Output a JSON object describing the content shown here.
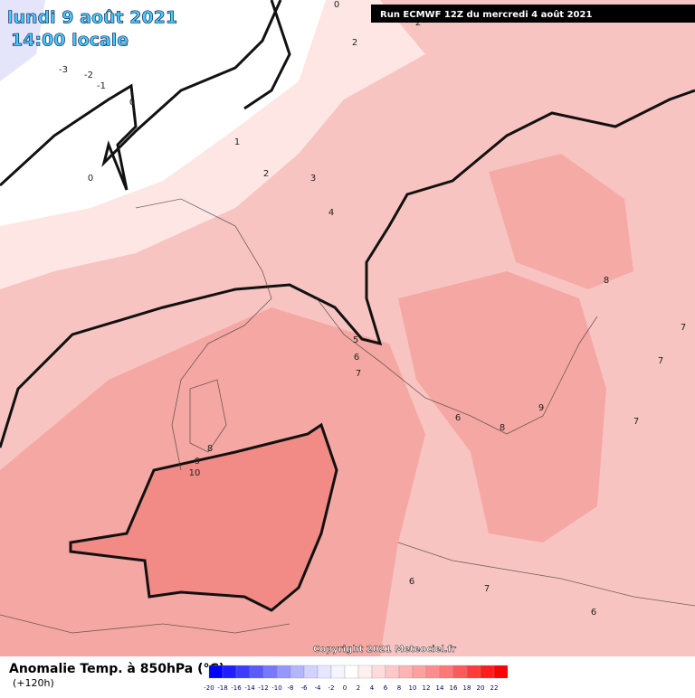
{
  "header": {
    "date": "lundi 9 août 2021",
    "time": "14:00 locale",
    "run": "Run ECMWF 12Z du mercredi 4 août 2021"
  },
  "copyright": "Copyright 2021 Meteociel.fr",
  "legend": {
    "title": "Anomalie Temp. à 850hPa (°C)",
    "lead": "(+120h)",
    "values": [
      -20,
      -18,
      -16,
      -14,
      -12,
      -10,
      -8,
      -6,
      -4,
      -2,
      0,
      2,
      4,
      6,
      8,
      10,
      12,
      14,
      16,
      18,
      20,
      22
    ],
    "colors": [
      "#0000ff",
      "#1e1eff",
      "#3c3cff",
      "#5a5aff",
      "#7878ff",
      "#9696ff",
      "#b4b4ff",
      "#d2d2ff",
      "#e6e6ff",
      "#f5f5ff",
      "#ffffff",
      "#fff0f0",
      "#ffdcdc",
      "#ffc8c8",
      "#ffb4b4",
      "#ffa0a0",
      "#ff8c8c",
      "#ff7878",
      "#ff5a5a",
      "#ff3c3c",
      "#ff1e1e",
      "#ff0000"
    ]
  },
  "contour_labels": [
    0,
    2,
    2,
    -3,
    -2,
    -1,
    0,
    1,
    2,
    3,
    4,
    0,
    5,
    6,
    7,
    6,
    8,
    9,
    7,
    7,
    7,
    8,
    8,
    9,
    10,
    6,
    7,
    6
  ]
}
